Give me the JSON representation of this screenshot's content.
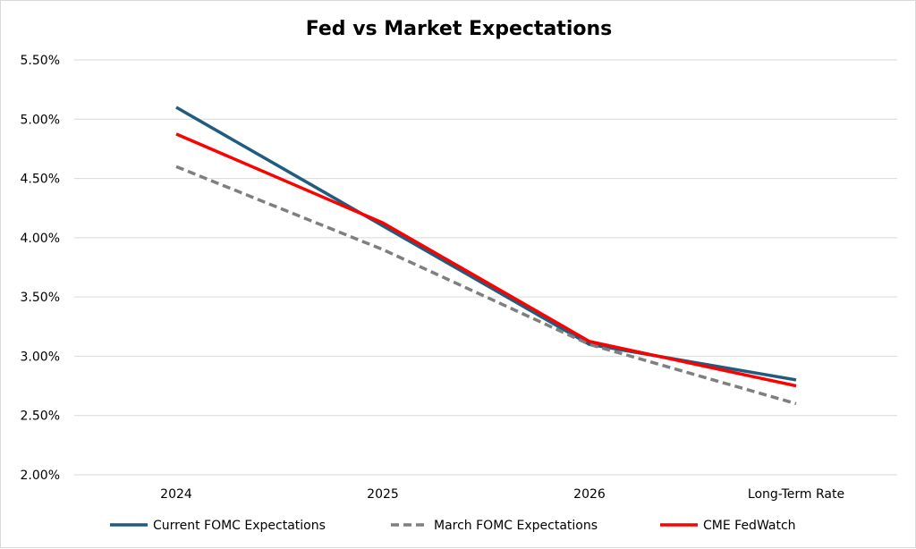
{
  "chart_data": {
    "type": "line",
    "title": "Fed vs Market Expectations",
    "xlabel": "",
    "ylabel": "",
    "categories": [
      "2024",
      "2025",
      "2026",
      "Long-Term Rate"
    ],
    "ylim": [
      2.0,
      5.5
    ],
    "yticks": [
      2.0,
      2.5,
      3.0,
      3.5,
      4.0,
      4.5,
      5.0,
      5.5
    ],
    "ytick_labels": [
      "2.00%",
      "2.50%",
      "3.00%",
      "3.50%",
      "4.00%",
      "4.50%",
      "5.00%",
      "5.50%"
    ],
    "grid": "horizontal",
    "legend_position": "bottom",
    "series": [
      {
        "name": "Current FOMC Expectations",
        "values": [
          5.1,
          4.1,
          3.1,
          2.8
        ],
        "color": "#1f5c7f",
        "style": "solid"
      },
      {
        "name": "March FOMC Expectations",
        "values": [
          4.6,
          3.9,
          3.1,
          2.6
        ],
        "color": "#7f7f7f",
        "style": "dashed"
      },
      {
        "name": "CME FedWatch",
        "values": [
          4.875,
          4.125,
          3.125,
          2.75
        ],
        "color": "#ff0000",
        "style": "solid"
      }
    ]
  }
}
